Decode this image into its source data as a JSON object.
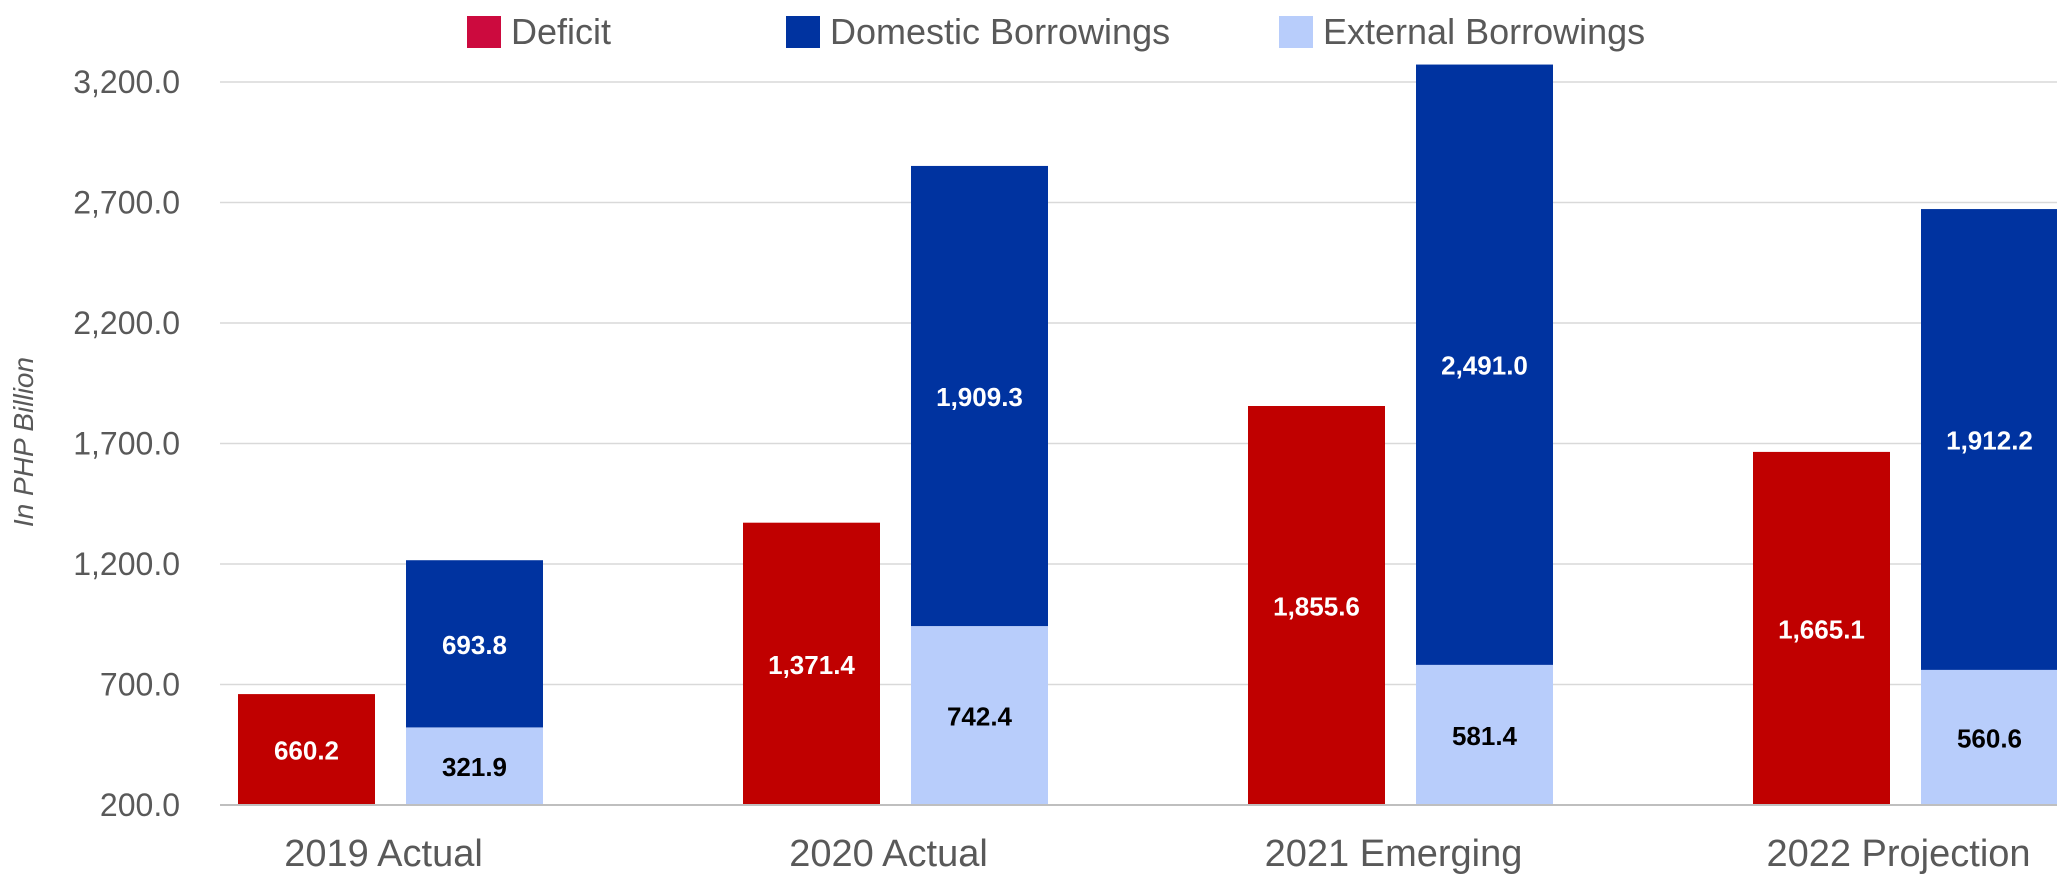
{
  "chart_data": {
    "type": "bar",
    "ylabel": "In PHP Billion",
    "ylim": [
      200,
      3200
    ],
    "yticks": [
      200,
      700,
      1200,
      1700,
      2200,
      2700,
      3200
    ],
    "ytick_labels": [
      "200.0",
      "700.0",
      "1,200.0",
      "1,700.0",
      "2,200.0",
      "2,700.0",
      "3,200.0"
    ],
    "grid": true,
    "legend_position": "top",
    "categories": [
      "2019 Actual",
      "2020 Actual",
      "2021 Emerging",
      "2022 Projection"
    ],
    "series": [
      {
        "name": "Deficit",
        "color": "#c00000",
        "stack": "deficit",
        "values": [
          660.2,
          1371.4,
          1855.6,
          1665.1
        ],
        "labels": [
          "660.2",
          "1,371.4",
          "1,855.6",
          "1,665.1"
        ],
        "label_color": "#ffffff"
      },
      {
        "name": "Domestic Borrowings",
        "color": "#0033a0",
        "stack": "financing",
        "values": [
          693.8,
          1909.3,
          2491.0,
          1912.2
        ],
        "labels": [
          "693.8",
          "1,909.3",
          "2,491.0",
          "1,912.2"
        ],
        "label_color": "#ffffff"
      },
      {
        "name": "External Borrowings",
        "color": "#b8cdfb",
        "stack": "financing",
        "values": [
          321.9,
          742.4,
          581.4,
          560.6
        ],
        "labels": [
          "321.9",
          "742.4",
          "581.4",
          "560.6"
        ],
        "label_color": "#000000"
      }
    ],
    "legend": [
      {
        "name": "Deficit",
        "color": "#cc0a3e"
      },
      {
        "name": "Domestic Borrowings",
        "color": "#0033a0"
      },
      {
        "name": "External Borrowings",
        "color": "#b8cdfb"
      }
    ]
  }
}
